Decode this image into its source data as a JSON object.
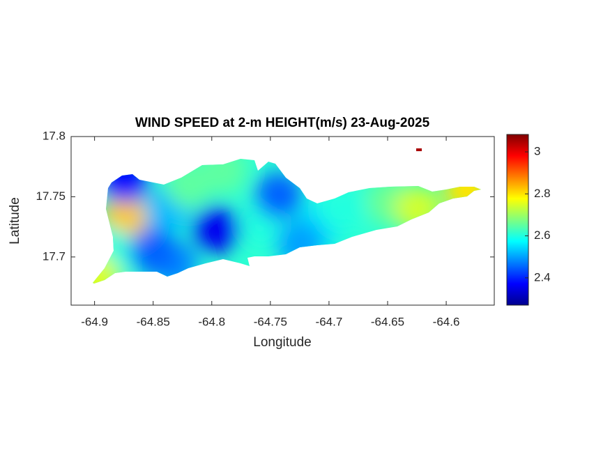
{
  "chart_data": {
    "type": "contourf",
    "title": "WIND SPEED at 2-m HEIGHT(m/s) 23-Aug-2025",
    "xlabel": "Longitude",
    "ylabel": "Latitude",
    "xlim": [
      -64.92,
      -64.559
    ],
    "ylim": [
      17.66,
      17.8
    ],
    "xticks": [
      -64.9,
      -64.85,
      -64.8,
      -64.75,
      -64.7,
      -64.65,
      -64.6
    ],
    "yticks": [
      17.7,
      17.75,
      17.8
    ],
    "colormap": "jet",
    "clim": [
      2.27,
      3.083
    ],
    "cticks": [
      2.4,
      2.6,
      2.8,
      3
    ],
    "points": {
      "lon": [
        -64.874,
        -64.874,
        -64.886,
        -64.898,
        -64.838,
        -64.82,
        -64.79,
        -64.796,
        -64.832,
        -64.755,
        -64.743,
        -64.707,
        -64.689,
        -64.648,
        -64.624,
        -64.582,
        -64.725,
        -64.85,
        -64.624
      ],
      "lat": [
        17.734,
        17.764,
        17.705,
        17.682,
        17.74,
        17.76,
        17.772,
        17.723,
        17.694,
        17.728,
        17.751,
        17.728,
        17.74,
        17.746,
        17.74,
        17.756,
        17.711,
        17.705,
        17.789
      ],
      "values": [
        2.82,
        2.38,
        2.6,
        2.75,
        2.52,
        2.65,
        2.65,
        2.36,
        2.48,
        2.6,
        2.45,
        2.55,
        2.6,
        2.66,
        2.74,
        2.8,
        2.5,
        2.45,
        3.05
      ]
    }
  }
}
